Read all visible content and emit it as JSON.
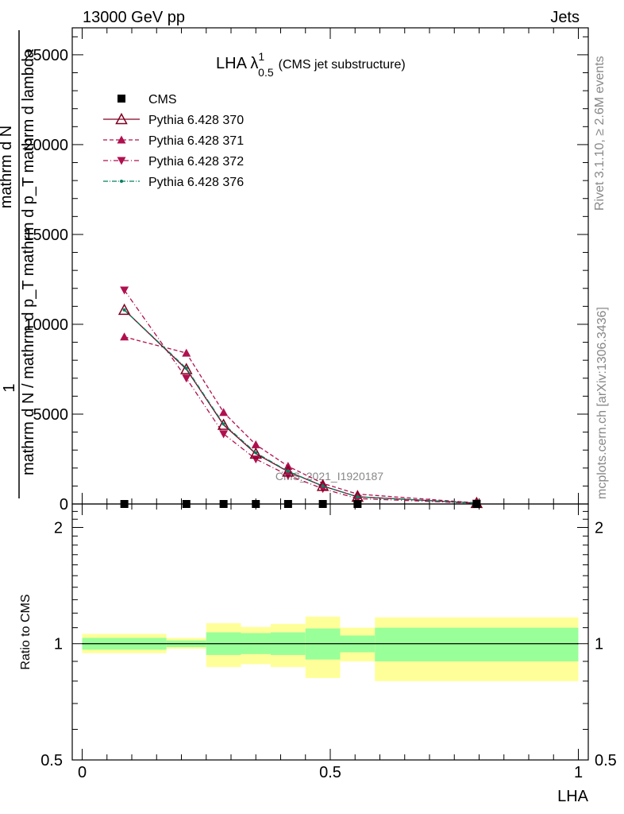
{
  "header": {
    "energy_label": "13000 GeV pp",
    "category_label": "Jets"
  },
  "side": {
    "rivet_label": "Rivet 3.1.10, ≥ 2.6M events",
    "mcplots_label": "mcplots.cern.ch [arXiv:1306.3436]"
  },
  "watermark": "CMS_2021_I1920187",
  "chart_data": [
    {
      "type": "line",
      "title_main": "LHA λ",
      "title_sup": "1",
      "title_sub": "0.5",
      "title_extra": "(CMS jet substructure)",
      "ylabel_lines": [
        "1",
        "mathrm d N",
        "mathrm d N / mathrm d p_T mathrm d p_T mathrm d lambda"
      ],
      "ylim": [
        0,
        26500
      ],
      "xlim": [
        -0.02,
        1.02
      ],
      "yticks": [
        0,
        5000,
        10000,
        15000,
        20000,
        25000
      ],
      "ytick_labels": [
        "0",
        "5000",
        "10000",
        "15000",
        "20000",
        "25000"
      ],
      "legend_position": "top-left",
      "series": [
        {
          "name": "CMS",
          "color": "#000000",
          "marker": "square",
          "x": [
            0.085,
            0.21,
            0.285,
            0.35,
            0.415,
            0.485,
            0.555,
            0.795
          ],
          "y": [
            0,
            0,
            0,
            0,
            0,
            0,
            0,
            0
          ]
        },
        {
          "name": "Pythia 6.428 370",
          "color": "#800020",
          "marker": "open-triangle-up",
          "dash": "",
          "x": [
            0.085,
            0.21,
            0.285,
            0.35,
            0.415,
            0.485,
            0.555,
            0.795
          ],
          "y": [
            10800,
            7500,
            4400,
            2800,
            1800,
            1000,
            400,
            50
          ]
        },
        {
          "name": "Pythia 6.428 371",
          "color": "#b0104f",
          "marker": "filled-triangle-up",
          "dash": "5,3",
          "x": [
            0.085,
            0.21,
            0.285,
            0.35,
            0.415,
            0.485,
            0.555,
            0.795
          ],
          "y": [
            9300,
            8400,
            5100,
            3300,
            2100,
            1150,
            550,
            60
          ]
        },
        {
          "name": "Pythia 6.428 372",
          "color": "#b0104f",
          "marker": "filled-triangle-down",
          "dash": "6,3,1,3",
          "x": [
            0.085,
            0.21,
            0.285,
            0.35,
            0.415,
            0.485,
            0.555,
            0.795
          ],
          "y": [
            11900,
            7000,
            3900,
            2500,
            1600,
            850,
            300,
            40
          ]
        },
        {
          "name": "Pythia 6.428 376",
          "color": "#008060",
          "marker": "small-dot",
          "dash": "6,2,1,2",
          "x": [
            0.085,
            0.21,
            0.285,
            0.35,
            0.415,
            0.485,
            0.555,
            0.795
          ],
          "y": [
            10800,
            7550,
            4450,
            2850,
            1820,
            1000,
            400,
            50
          ]
        }
      ]
    },
    {
      "type": "area",
      "ylabel": "Ratio to CMS",
      "xlabel": "LHA",
      "ylim": [
        0.5,
        2.3
      ],
      "xlim": [
        -0.02,
        1.02
      ],
      "scale": "log",
      "yticks": [
        0.5,
        1,
        2
      ],
      "ytick_labels": [
        "0.5",
        "1",
        "2"
      ],
      "xticks": [
        0,
        0.5,
        1
      ],
      "xtick_labels": [
        "0",
        "0.5",
        "1"
      ],
      "reference_line": 1,
      "bands": [
        {
          "x_low": 0.0,
          "x_high": 0.17,
          "stat_low": 0.965,
          "stat_high": 1.035,
          "total_low": 0.945,
          "total_high": 1.06
        },
        {
          "x_low": 0.17,
          "x_high": 0.25,
          "stat_low": 0.98,
          "stat_high": 1.02,
          "total_low": 0.97,
          "total_high": 1.035
        },
        {
          "x_low": 0.25,
          "x_high": 0.32,
          "stat_low": 0.935,
          "stat_high": 1.07,
          "total_low": 0.87,
          "total_high": 1.13
        },
        {
          "x_low": 0.32,
          "x_high": 0.38,
          "stat_low": 0.94,
          "stat_high": 1.065,
          "total_low": 0.885,
          "total_high": 1.105
        },
        {
          "x_low": 0.38,
          "x_high": 0.45,
          "stat_low": 0.935,
          "stat_high": 1.07,
          "total_low": 0.87,
          "total_high": 1.125
        },
        {
          "x_low": 0.45,
          "x_high": 0.52,
          "stat_low": 0.91,
          "stat_high": 1.095,
          "total_low": 0.815,
          "total_high": 1.175
        },
        {
          "x_low": 0.52,
          "x_high": 0.59,
          "stat_low": 0.95,
          "stat_high": 1.05,
          "total_low": 0.9,
          "total_high": 1.1
        },
        {
          "x_low": 0.59,
          "x_high": 1.0,
          "stat_low": 0.9,
          "stat_high": 1.1,
          "total_low": 0.8,
          "total_high": 1.17
        }
      ],
      "colors": {
        "stat": "#99ff99",
        "total": "#ffff99",
        "line": "#000000"
      }
    }
  ]
}
